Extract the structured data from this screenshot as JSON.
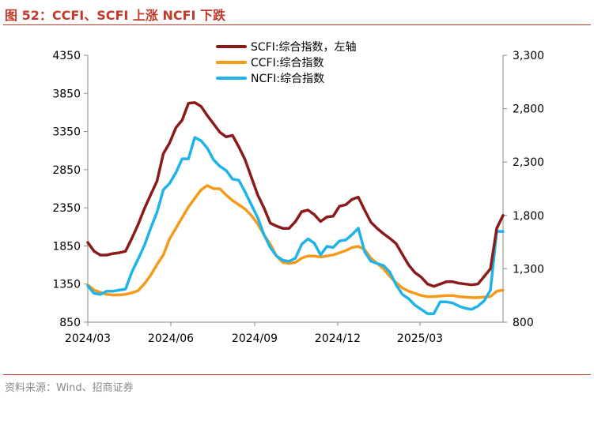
{
  "header": {
    "title": "图 52：CCFI、SCFI 上涨 NCFI 下跌"
  },
  "footer": {
    "source": "资料来源：Wind、招商证券"
  },
  "chart_data": {
    "type": "line",
    "title": "图 52：CCFI、SCFI 上涨 NCFI 下跌",
    "x_ticks": [
      "2024/03",
      "2024/06",
      "2024/09",
      "2024/12",
      "2025/03"
    ],
    "y_left": {
      "range": [
        850,
        4350
      ],
      "ticks": [
        "850",
        "1350",
        "1850",
        "2350",
        "2850",
        "3350",
        "3850",
        "4350"
      ]
    },
    "y_right": {
      "range": [
        800,
        3300
      ],
      "ticks": [
        "800",
        "1,300",
        "1,800",
        "2,300",
        "2,800",
        "3,300"
      ]
    },
    "legend": [
      "SCFI:综合指数，左轴",
      "CCFI:综合指数",
      "NCFI:综合指数"
    ],
    "series": [
      {
        "name": "SCFI:综合指数，左轴",
        "axis": "left",
        "color": "#8b1a1a",
        "values": [
          1895,
          1780,
          1730,
          1730,
          1750,
          1760,
          1780,
          1950,
          2130,
          2340,
          2520,
          2700,
          3060,
          3200,
          3400,
          3500,
          3720,
          3730,
          3680,
          3560,
          3450,
          3340,
          3280,
          3300,
          3150,
          2980,
          2750,
          2520,
          2350,
          2150,
          2110,
          2080,
          2080,
          2170,
          2300,
          2320,
          2260,
          2170,
          2230,
          2240,
          2370,
          2390,
          2460,
          2490,
          2320,
          2160,
          2080,
          2010,
          1950,
          1880,
          1740,
          1600,
          1500,
          1440,
          1350,
          1320,
          1350,
          1380,
          1380,
          1360,
          1350,
          1340,
          1350,
          1450,
          1550,
          2080,
          2250
        ]
      },
      {
        "name": "CCFI:综合指数",
        "axis": "right",
        "color": "#f59a1b",
        "values": [
          1150,
          1100,
          1080,
          1060,
          1055,
          1055,
          1060,
          1075,
          1095,
          1160,
          1240,
          1340,
          1430,
          1580,
          1680,
          1780,
          1880,
          1960,
          2040,
          2080,
          2050,
          2050,
          1990,
          1940,
          1900,
          1860,
          1800,
          1720,
          1620,
          1530,
          1420,
          1360,
          1350,
          1360,
          1400,
          1420,
          1420,
          1410,
          1420,
          1430,
          1450,
          1470,
          1500,
          1510,
          1480,
          1400,
          1350,
          1300,
          1230,
          1170,
          1120,
          1090,
          1070,
          1050,
          1040,
          1040,
          1045,
          1050,
          1050,
          1040,
          1035,
          1030,
          1030,
          1035,
          1040,
          1090,
          1100
        ]
      },
      {
        "name": "NCFI:综合指数",
        "axis": "right",
        "color": "#1fb3ea",
        "values": [
          1140,
          1070,
          1060,
          1090,
          1090,
          1100,
          1110,
          1270,
          1390,
          1520,
          1680,
          1830,
          2040,
          2100,
          2200,
          2330,
          2330,
          2530,
          2500,
          2430,
          2320,
          2260,
          2220,
          2140,
          2130,
          2020,
          1900,
          1780,
          1620,
          1500,
          1420,
          1380,
          1370,
          1400,
          1530,
          1580,
          1540,
          1430,
          1510,
          1500,
          1560,
          1570,
          1620,
          1680,
          1460,
          1370,
          1350,
          1330,
          1270,
          1150,
          1060,
          1020,
          960,
          920,
          880,
          880,
          990,
          990,
          980,
          950,
          930,
          920,
          950,
          1000,
          1100,
          1650,
          1650
        ]
      }
    ]
  }
}
